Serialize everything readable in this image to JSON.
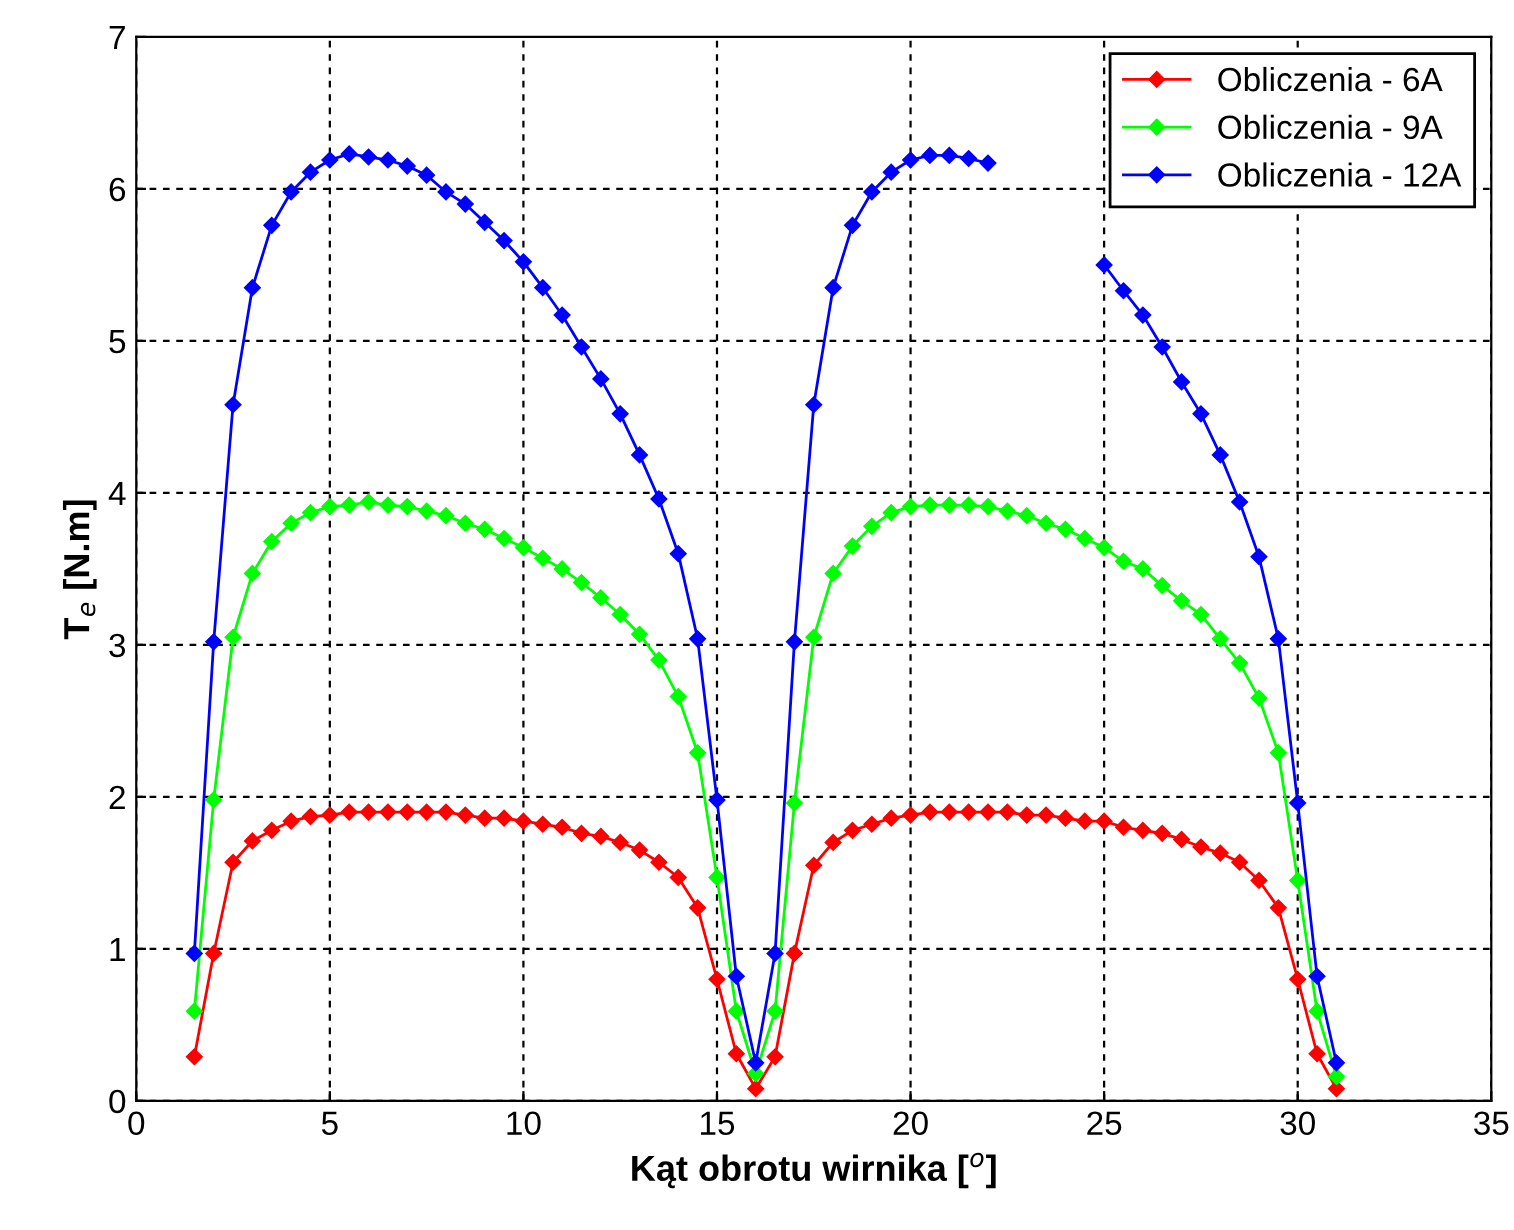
{
  "chart_data": {
    "type": "line",
    "xlabel": "Kąt obrotu wirnika [$^{o}$]",
    "ylabel": "T$_{e}$ [N.m]",
    "x": [
      1.5,
      2,
      2.5,
      3,
      3.5,
      4,
      4.5,
      5,
      5.5,
      6,
      6.5,
      7,
      7.5,
      8,
      8.5,
      9,
      9.5,
      10,
      10.5,
      11,
      11.5,
      12,
      12.5,
      13,
      13.5,
      14,
      14.5,
      15,
      15.5,
      16,
      16.5,
      17,
      17.5,
      18,
      18.5,
      19,
      19.5,
      20,
      20.5,
      21,
      21.5,
      22,
      22.5,
      23,
      23.5,
      24,
      24.5,
      25,
      25.5,
      26,
      26.5,
      27,
      27.5,
      28,
      28.5,
      29,
      29.5,
      30,
      30.5,
      31
    ],
    "series": [
      {
        "name": "Obliczenia - 6A",
        "color": "#ff0000",
        "values": [
          0.29,
          0.97,
          1.57,
          1.71,
          1.78,
          1.84,
          1.87,
          1.88,
          1.9,
          1.9,
          1.9,
          1.9,
          1.9,
          1.9,
          1.88,
          1.86,
          1.86,
          1.84,
          1.82,
          1.8,
          1.76,
          1.74,
          1.7,
          1.65,
          1.57,
          1.47,
          1.27,
          0.8,
          0.31,
          0.08,
          0.29,
          0.97,
          1.55,
          1.7,
          1.78,
          1.82,
          1.86,
          1.88,
          1.9,
          1.9,
          1.9,
          1.9,
          1.9,
          1.88,
          1.88,
          1.86,
          1.84,
          1.84,
          1.8,
          1.78,
          1.76,
          1.72,
          1.67,
          1.63,
          1.57,
          1.45,
          1.27,
          0.8,
          0.31,
          0.08
        ]
      },
      {
        "name": "Obliczenia - 9A",
        "color": "#00ff00",
        "values": [
          0.59,
          1.98,
          3.05,
          3.47,
          3.68,
          3.8,
          3.87,
          3.91,
          3.92,
          3.94,
          3.92,
          3.91,
          3.88,
          3.85,
          3.8,
          3.76,
          3.7,
          3.64,
          3.57,
          3.5,
          3.41,
          3.31,
          3.2,
          3.07,
          2.9,
          2.66,
          2.29,
          1.47,
          0.59,
          0.18,
          0.59,
          1.96,
          3.05,
          3.47,
          3.65,
          3.78,
          3.87,
          3.91,
          3.92,
          3.92,
          3.92,
          3.91,
          3.88,
          3.85,
          3.8,
          3.76,
          3.7,
          3.64,
          3.55,
          3.5,
          3.39,
          3.29,
          3.2,
          3.04,
          2.88,
          2.65,
          2.29,
          1.45,
          0.59,
          0.16
        ]
      },
      {
        "name": "Obliczenia - 12A",
        "color": "#0000ff",
        "values": [
          0.97,
          3.02,
          4.58,
          5.35,
          5.76,
          5.98,
          6.11,
          6.19,
          6.23,
          6.21,
          6.19,
          6.15,
          6.09,
          5.98,
          5.9,
          5.78,
          5.66,
          5.52,
          5.35,
          5.17,
          4.96,
          4.75,
          4.52,
          4.25,
          3.96,
          3.6,
          3.04,
          1.98,
          0.82,
          0.25,
          0.97,
          3.02,
          4.58,
          5.35,
          5.76,
          5.98,
          6.11,
          6.19,
          6.22,
          6.22,
          6.2,
          6.17,
          null,
          null,
          null,
          null,
          null,
          5.5,
          5.33,
          5.17,
          4.96,
          4.73,
          4.52,
          4.25,
          3.94,
          3.58,
          3.04,
          1.96,
          0.82,
          0.25
        ]
      }
    ],
    "xlim": [
      0,
      35
    ],
    "xticks": [
      0,
      5,
      10,
      15,
      20,
      25,
      30,
      35
    ],
    "ylim": [
      0,
      7
    ],
    "yticks": [
      0,
      1,
      2,
      3,
      4,
      5,
      6,
      7
    ],
    "grid": true,
    "legend": "top right",
    "marker": "diamond",
    "line_style": "solid"
  }
}
